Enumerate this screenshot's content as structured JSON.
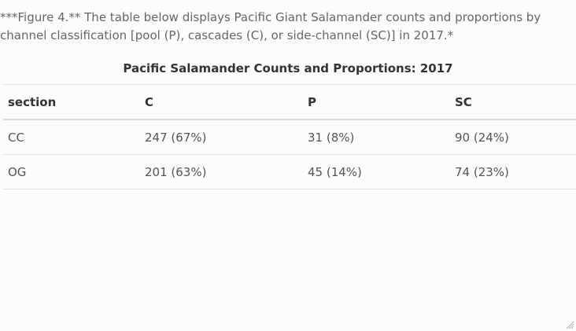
{
  "caption": "***Figure 4.** The table below displays Pacific Giant Salamander counts and proportions by channel classification [pool (P), cascades (C), or side-channel (SC)] in 2017.*",
  "table": {
    "title": "Pacific Salamander Counts and Proportions: 2017",
    "headers": [
      "section",
      "C",
      "P",
      "SC"
    ],
    "rows": [
      [
        "CC",
        "247 (67%)",
        "31 (8%)",
        "90 (24%)"
      ],
      [
        "OG",
        "201 (63%)",
        "45 (14%)",
        "74 (23%)"
      ]
    ]
  },
  "icons": {
    "resize_handle": "resize-grip-icon"
  }
}
